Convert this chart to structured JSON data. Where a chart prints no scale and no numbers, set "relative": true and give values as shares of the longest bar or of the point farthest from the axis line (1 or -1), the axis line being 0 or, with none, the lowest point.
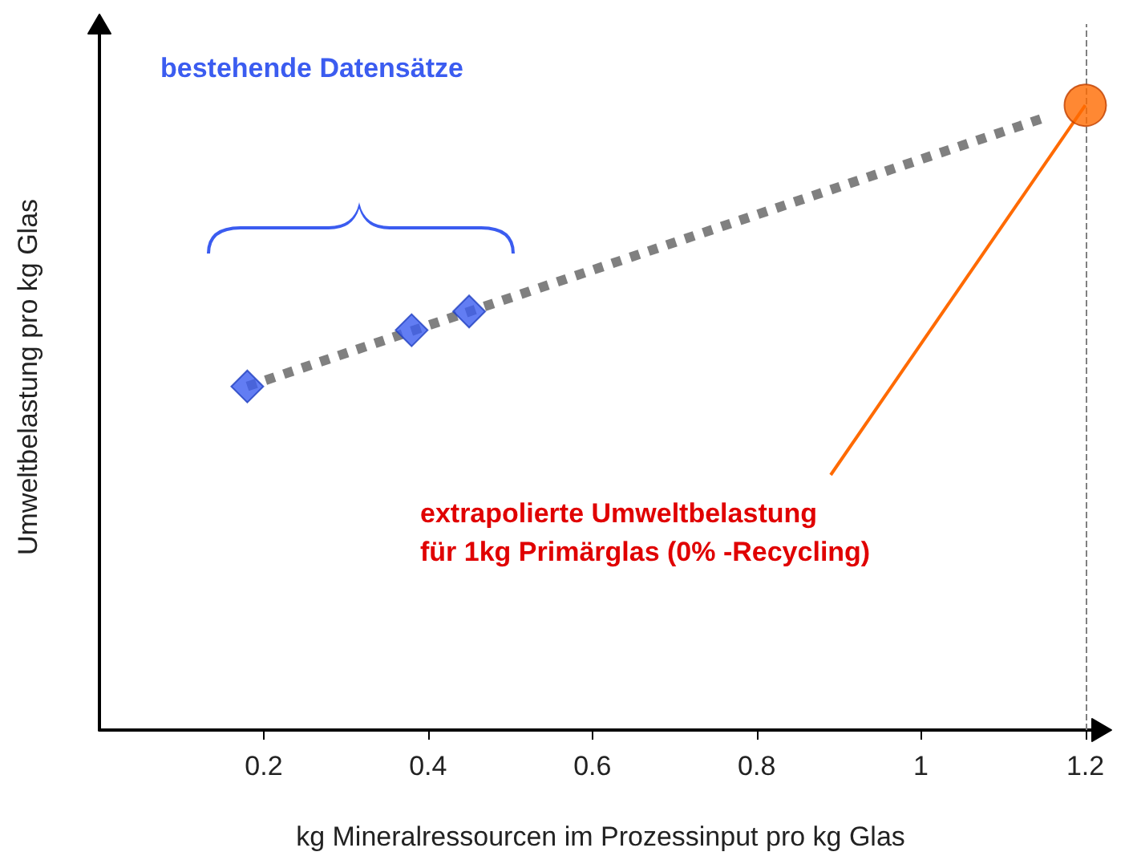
{
  "chart_data": {
    "type": "scatter",
    "relative": true,
    "xlabel": "kg Mineralressourcen im Prozessinput pro kg Glas",
    "ylabel": "Umweltbelastung pro kg Glas",
    "xlim": [
      0,
      1.22
    ],
    "xticks": [
      0.2,
      0.4,
      0.6,
      0.8,
      1,
      1.2
    ],
    "grid": false,
    "series": [
      {
        "type": "line",
        "color": "#808080",
        "x": [
          0.18,
          1.15
        ],
        "values": [
          0.55,
          0.98
        ],
        "marker": "none",
        "line_style": "dotted"
      },
      {
        "color": "#3b5cf0",
        "x": [
          0.18,
          0.38,
          0.45
        ],
        "values": [
          0.55,
          0.64,
          0.67
        ],
        "marker": "diamond"
      },
      {
        "color": "#ff6a00",
        "x": [
          1.2
        ],
        "values": [
          1
        ],
        "marker": "circle"
      }
    ],
    "ref_lines": [
      {
        "axis": "x",
        "value": 1.2,
        "color": "#808080",
        "line_style": "dashed"
      }
    ],
    "annotations": [
      "bestehende Datensätze",
      {
        "text": "extrapolierte Umweltbelastung\nfür 1kg Primärglas (0% -Recycling)",
        "x": 1.2,
        "y": 1
      }
    ]
  }
}
